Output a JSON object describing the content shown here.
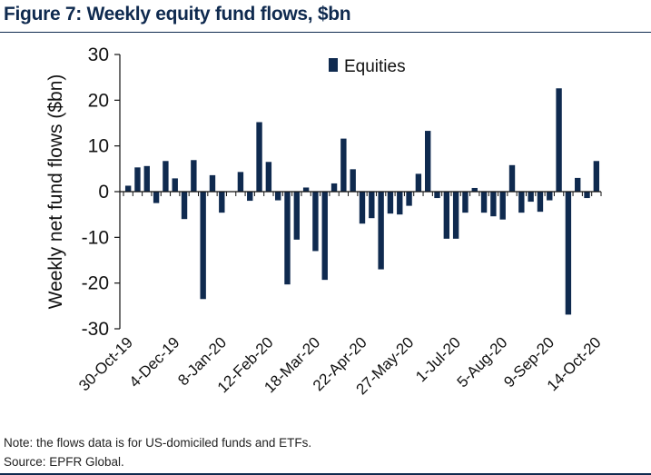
{
  "figure": {
    "title": "Figure 7: Weekly equity fund flows, $bn",
    "note": "Note: the flows data is for US-domiciled funds and ETFs.",
    "source": "Source: EPFR Global."
  },
  "colors": {
    "bar": "#0f2a4f",
    "title": "#0f2a4f"
  },
  "chart_data": {
    "type": "bar",
    "title": "Weekly equity fund flows, $bn",
    "xlabel": "",
    "ylabel": "Weekly net fund flows ($bn)",
    "ylim": [
      -30,
      30
    ],
    "yticks": [
      -30,
      -20,
      -10,
      0,
      10,
      20,
      30
    ],
    "ytick_labels": [
      "-30",
      "-20",
      "-10",
      "0",
      "10",
      "20",
      "30"
    ],
    "legend": {
      "position": "top-center",
      "label": "Equities"
    },
    "grid": false,
    "xtick_labels": [
      {
        "label": "30-Oct-19",
        "index": 0
      },
      {
        "label": "4-Dec-19",
        "index": 5
      },
      {
        "label": "8-Jan-20",
        "index": 10
      },
      {
        "label": "12-Feb-20",
        "index": 15
      },
      {
        "label": "18-Mar-20",
        "index": 20
      },
      {
        "label": "22-Apr-20",
        "index": 25
      },
      {
        "label": "27-May-20",
        "index": 30
      },
      {
        "label": "1-Jul-20",
        "index": 35
      },
      {
        "label": "5-Aug-20",
        "index": 40
      },
      {
        "label": "9-Sep-20",
        "index": 45
      },
      {
        "label": "14-Oct-20",
        "index": 50
      }
    ],
    "series": [
      {
        "name": "Equities",
        "values": [
          1.3,
          5.3,
          5.6,
          -2.5,
          6.7,
          2.9,
          -6.0,
          6.9,
          -23.5,
          3.6,
          -4.6,
          0.0,
          4.3,
          -2.0,
          15.2,
          6.5,
          -1.9,
          -20.3,
          -10.5,
          0.9,
          -13.0,
          -19.3,
          1.8,
          11.6,
          4.9,
          -7.0,
          -5.8,
          -17.0,
          -4.8,
          -5.0,
          -3.1,
          3.9,
          13.3,
          -1.4,
          -10.3,
          -10.3,
          -4.6,
          0.8,
          -4.6,
          -5.4,
          -6.1,
          5.8,
          -4.6,
          -2.2,
          -4.4,
          -1.9,
          22.6,
          -26.9,
          3.0,
          -1.4,
          6.7
        ]
      }
    ]
  }
}
